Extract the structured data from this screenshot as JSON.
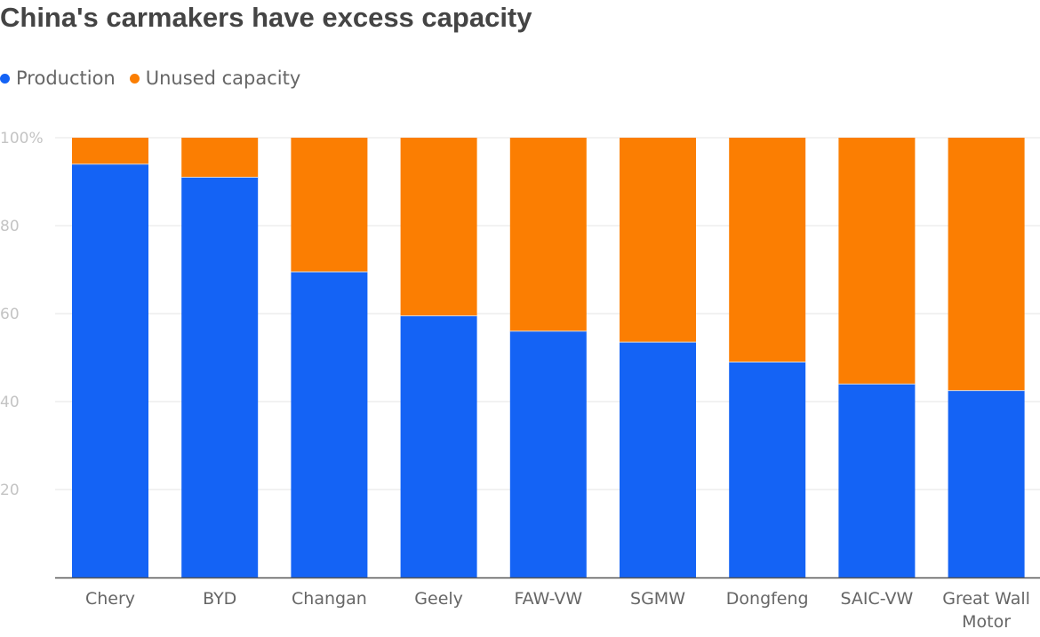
{
  "colors": {
    "production": "#1463f5",
    "unused": "#fb7e02"
  },
  "chart_data": {
    "type": "bar",
    "stacked": true,
    "title": "China's carmakers have excess capacity",
    "categories": [
      "Chery",
      "BYD",
      "Changan",
      "Geely",
      "FAW-VW",
      "SGMW",
      "Dongfeng",
      "SAIC-VW",
      "Great Wall Motor"
    ],
    "category_lines": [
      [
        "Chery"
      ],
      [
        "BYD"
      ],
      [
        "Changan"
      ],
      [
        "Geely"
      ],
      [
        "FAW-VW"
      ],
      [
        "SGMW"
      ],
      [
        "Dongfeng"
      ],
      [
        "SAIC-VW"
      ],
      [
        "Great Wall",
        "Motor"
      ]
    ],
    "series": [
      {
        "name": "Production",
        "values": [
          94,
          91,
          69.5,
          59.5,
          56,
          53.5,
          49,
          44,
          42.5
        ]
      },
      {
        "name": "Unused capacity",
        "values": [
          6,
          9,
          30.5,
          40.5,
          44,
          46.5,
          51,
          56,
          57.5
        ]
      }
    ],
    "yticks": [
      20,
      40,
      60,
      80,
      100
    ],
    "ytick_labels": [
      "20",
      "40",
      "60",
      "80",
      "100%"
    ],
    "ylim": [
      0,
      100
    ],
    "xlabel": "",
    "ylabel": "",
    "grid": true,
    "legend_position": "top-left"
  }
}
